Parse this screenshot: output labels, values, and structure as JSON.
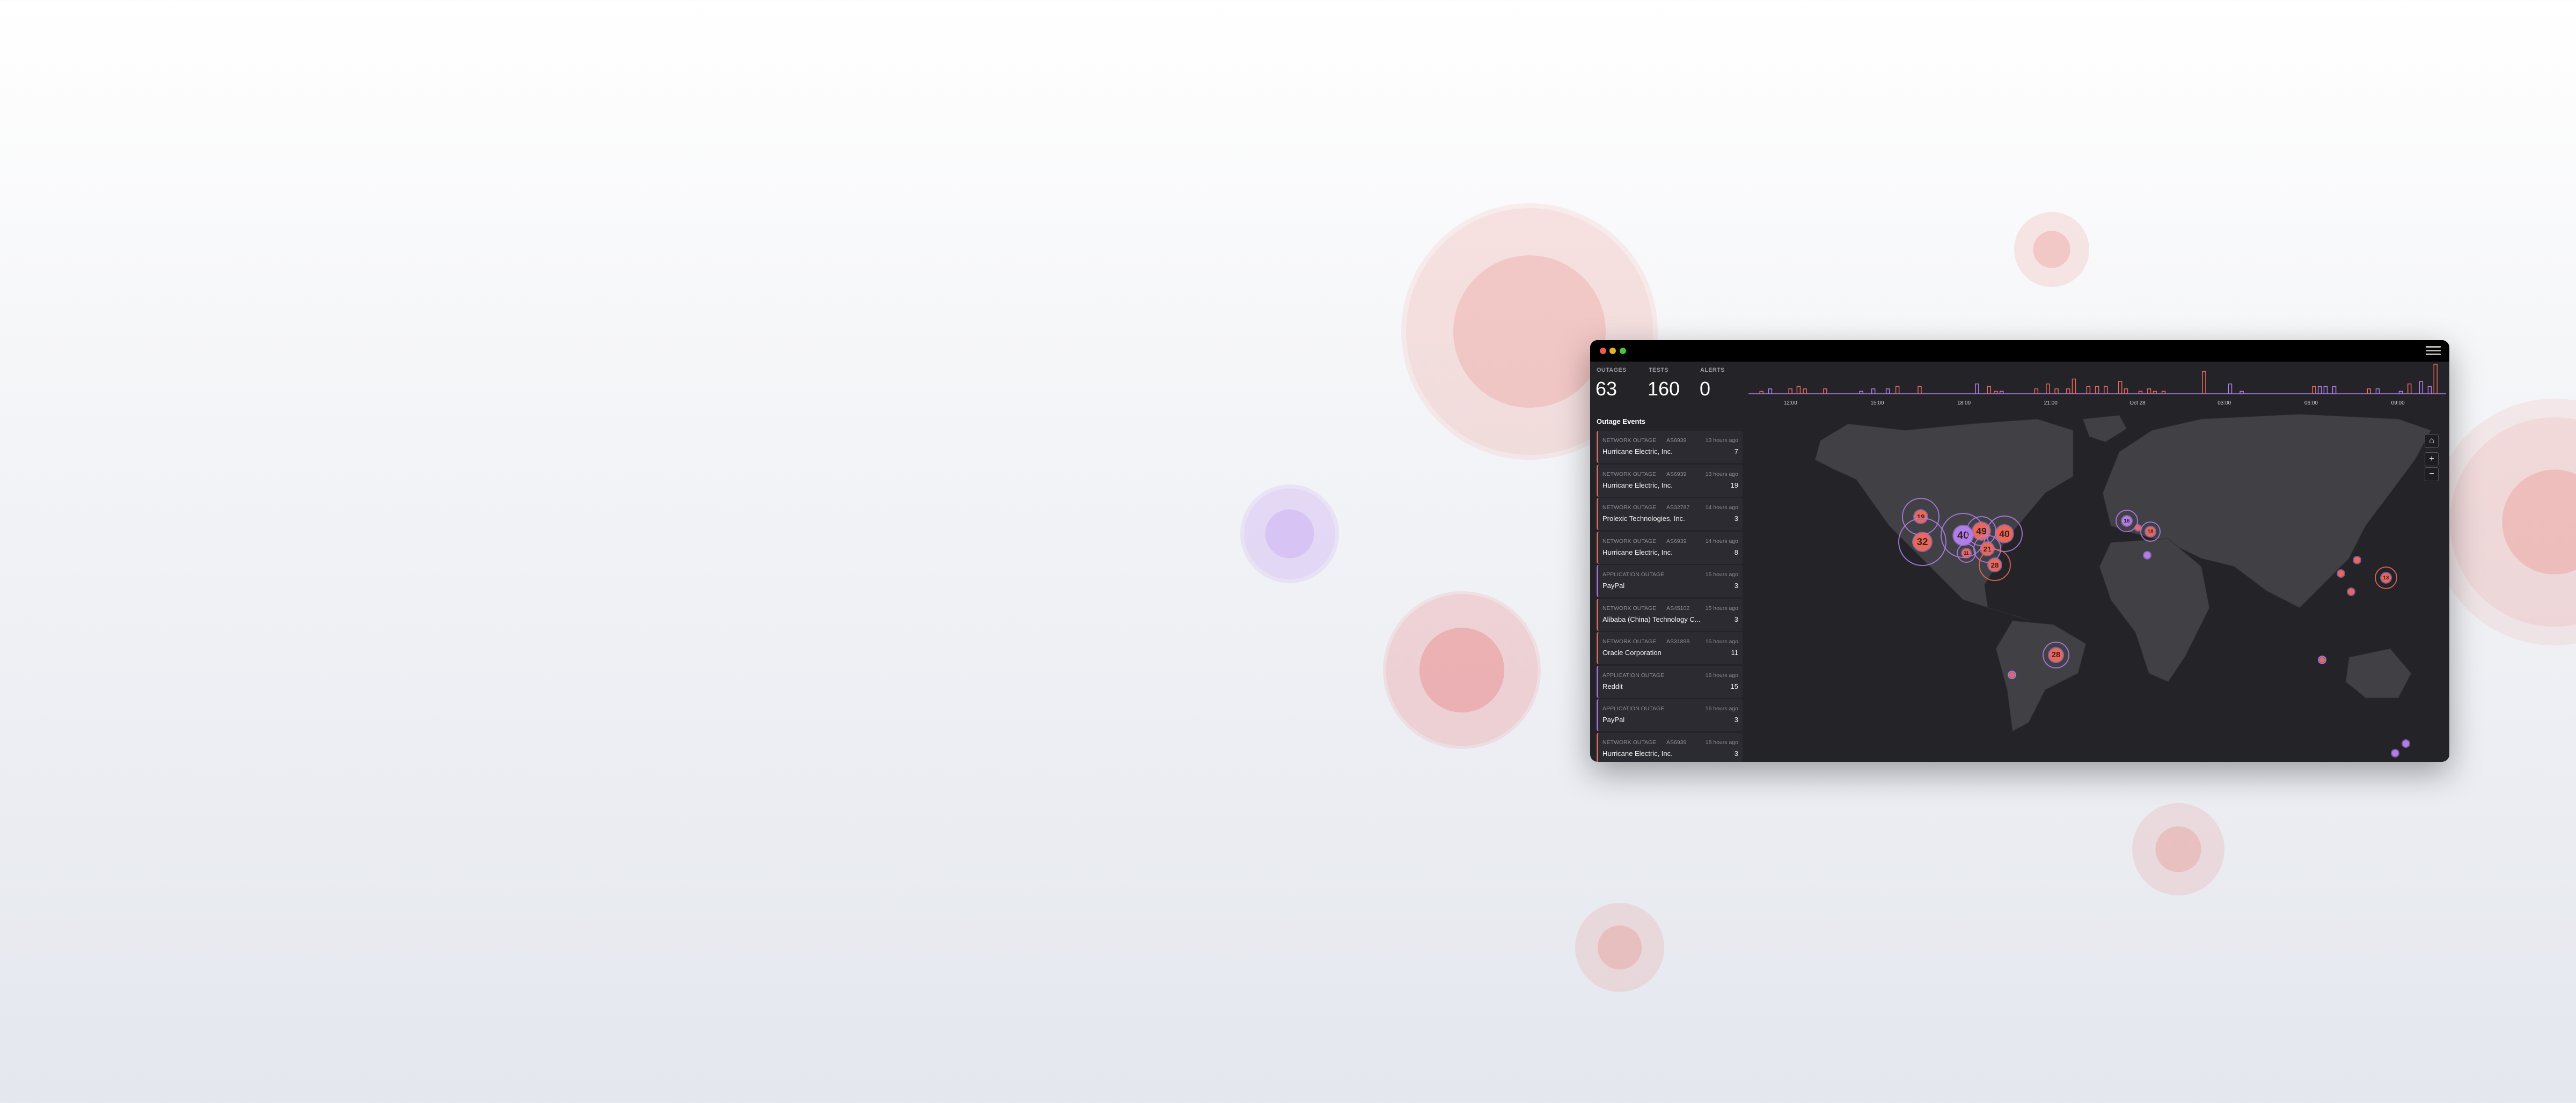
{
  "window": {
    "controls": [
      "close",
      "minimize",
      "maximize"
    ],
    "menu_icon": "hamburger-icon"
  },
  "stats": [
    {
      "label": "OUTAGES",
      "value": "63"
    },
    {
      "label": "TESTS",
      "value": "160"
    },
    {
      "label": "ALERTS",
      "value": "0"
    }
  ],
  "events_title": "Outage Events",
  "events": [
    {
      "type": "NETWORK OUTAGE",
      "asn": "AS6939",
      "time": "13 hours ago",
      "name": "Hurricane Electric, Inc.",
      "count": "7",
      "kind": "network"
    },
    {
      "type": "NETWORK OUTAGE",
      "asn": "AS6939",
      "time": "13 hours ago",
      "name": "Hurricane Electric, Inc.",
      "count": "19",
      "kind": "network"
    },
    {
      "type": "NETWORK OUTAGE",
      "asn": "AS32787",
      "time": "14 hours ago",
      "name": "Prolexic Technologies, Inc.",
      "count": "3",
      "kind": "network"
    },
    {
      "type": "NETWORK OUTAGE",
      "asn": "AS6939",
      "time": "14 hours ago",
      "name": "Hurricane Electric, Inc.",
      "count": "8",
      "kind": "network"
    },
    {
      "type": "APPLICATION OUTAGE",
      "asn": "",
      "time": "15 hours ago",
      "name": "PayPal",
      "count": "3",
      "kind": "app"
    },
    {
      "type": "NETWORK OUTAGE",
      "asn": "AS45102",
      "time": "15 hours ago",
      "name": "Alibaba (China) Technology C...",
      "count": "3",
      "kind": "network"
    },
    {
      "type": "NETWORK OUTAGE",
      "asn": "AS31898",
      "time": "15 hours ago",
      "name": "Oracle Corporation",
      "count": "11",
      "kind": "network"
    },
    {
      "type": "APPLICATION OUTAGE",
      "asn": "",
      "time": "16 hours ago",
      "name": "Reddit",
      "count": "15",
      "kind": "app"
    },
    {
      "type": "APPLICATION OUTAGE",
      "asn": "",
      "time": "16 hours ago",
      "name": "PayPal",
      "count": "3",
      "kind": "app"
    },
    {
      "type": "NETWORK OUTAGE",
      "asn": "AS6939",
      "time": "18 hours ago",
      "name": "Hurricane Electric, Inc.",
      "count": "3",
      "kind": "network"
    }
  ],
  "colors": {
    "network": "#e8685a",
    "application": "#b07ee8",
    "panel": "#232328",
    "land": "#404045"
  },
  "chart_data": {
    "type": "line",
    "x_ticks": [
      "12:00",
      "15:00",
      "18:00",
      "21:00",
      "Oct 28",
      "03:00",
      "06:00",
      "09:00"
    ],
    "xlim": [
      "Oct 27 10:33",
      "Oct 28 10:40"
    ],
    "series": [
      {
        "kind": "network",
        "points": [
          [
            "Oct 27 11:00",
            1
          ],
          [
            "Oct 27 12:00",
            2
          ],
          [
            "Oct 27 12:17",
            3
          ],
          [
            "Oct 27 12:30",
            2
          ],
          [
            "Oct 27 13:12",
            2
          ],
          [
            "Oct 27 15:42",
            3
          ],
          [
            "Oct 27 16:28",
            3
          ],
          [
            "Oct 27 18:52",
            3
          ],
          [
            "Oct 27 19:06",
            1
          ],
          [
            "Oct 27 20:30",
            2
          ],
          [
            "Oct 27 20:54",
            4
          ],
          [
            "Oct 27 21:12",
            2
          ],
          [
            "Oct 27 21:36",
            2
          ],
          [
            "Oct 27 21:48",
            6
          ],
          [
            "Oct 27 22:18",
            3
          ],
          [
            "Oct 27 22:36",
            3
          ],
          [
            "Oct 27 22:54",
            3
          ],
          [
            "Oct 27 23:24",
            5
          ],
          [
            "Oct 27 23:36",
            2
          ],
          [
            "Oct 28 00:06",
            1
          ],
          [
            "Oct 28 00:24",
            2
          ],
          [
            "Oct 28 00:36",
            1
          ],
          [
            "Oct 28 00:54",
            1
          ],
          [
            "Oct 28 02:18",
            9
          ],
          [
            "Oct 28 06:06",
            3
          ],
          [
            "Oct 28 08:00",
            2
          ],
          [
            "Oct 28 09:24",
            4
          ],
          [
            "Oct 28 10:18",
            12
          ]
        ]
      },
      {
        "kind": "application",
        "points": [
          [
            "Oct 27 11:18",
            2
          ],
          [
            "Oct 27 14:27",
            1
          ],
          [
            "Oct 27 14:52",
            2
          ],
          [
            "Oct 27 15:22",
            2
          ],
          [
            "Oct 27 18:27",
            4
          ],
          [
            "Oct 27 19:18",
            1
          ],
          [
            "Oct 28 03:12",
            4
          ],
          [
            "Oct 28 03:36",
            1
          ],
          [
            "Oct 28 06:18",
            3
          ],
          [
            "Oct 28 06:30",
            3
          ],
          [
            "Oct 28 06:48",
            3
          ],
          [
            "Oct 28 08:18",
            2
          ],
          [
            "Oct 28 09:06",
            1
          ],
          [
            "Oct 28 09:48",
            5
          ],
          [
            "Oct 28 10:06",
            3
          ]
        ]
      }
    ]
  },
  "map": {
    "controls": [
      {
        "icon": "home-icon",
        "label": "⌂"
      },
      {
        "icon": "zoom-in-icon",
        "label": "+"
      },
      {
        "icon": "zoom-out-icon",
        "label": "−"
      }
    ],
    "clusters": [
      {
        "label": "19",
        "kind": "network",
        "ring": "application"
      },
      {
        "label": "32",
        "kind": "network",
        "ring": "application"
      },
      {
        "label": "40",
        "kind": "application",
        "ring": "application"
      },
      {
        "label": "49",
        "kind": "network",
        "ring": "application"
      },
      {
        "label": "40",
        "kind": "network",
        "ring": "application"
      },
      {
        "label": "21",
        "kind": "network",
        "ring": "application"
      },
      {
        "label": "11",
        "kind": "network",
        "ring": "application"
      },
      {
        "label": "28",
        "kind": "network",
        "ring": "network"
      },
      {
        "label": "28",
        "kind": "network",
        "ring": "application"
      },
      {
        "label": "16",
        "kind": "application",
        "ring": "application"
      },
      {
        "label": "18",
        "kind": "network",
        "ring": "application"
      },
      {
        "label": "13",
        "kind": "network",
        "ring": "network"
      },
      {
        "label": "",
        "kind": "network",
        "ring": ""
      },
      {
        "label": "",
        "kind": "application",
        "ring": ""
      },
      {
        "label": "",
        "kind": "network",
        "ring": ""
      },
      {
        "label": "",
        "kind": "network",
        "ring": ""
      },
      {
        "label": "",
        "kind": "network",
        "ring": ""
      },
      {
        "label": "",
        "kind": "network",
        "ring": "application"
      },
      {
        "label": "",
        "kind": "network",
        "ring": "application"
      },
      {
        "label": "",
        "kind": "application",
        "ring": ""
      },
      {
        "label": "",
        "kind": "application",
        "ring": ""
      }
    ]
  }
}
